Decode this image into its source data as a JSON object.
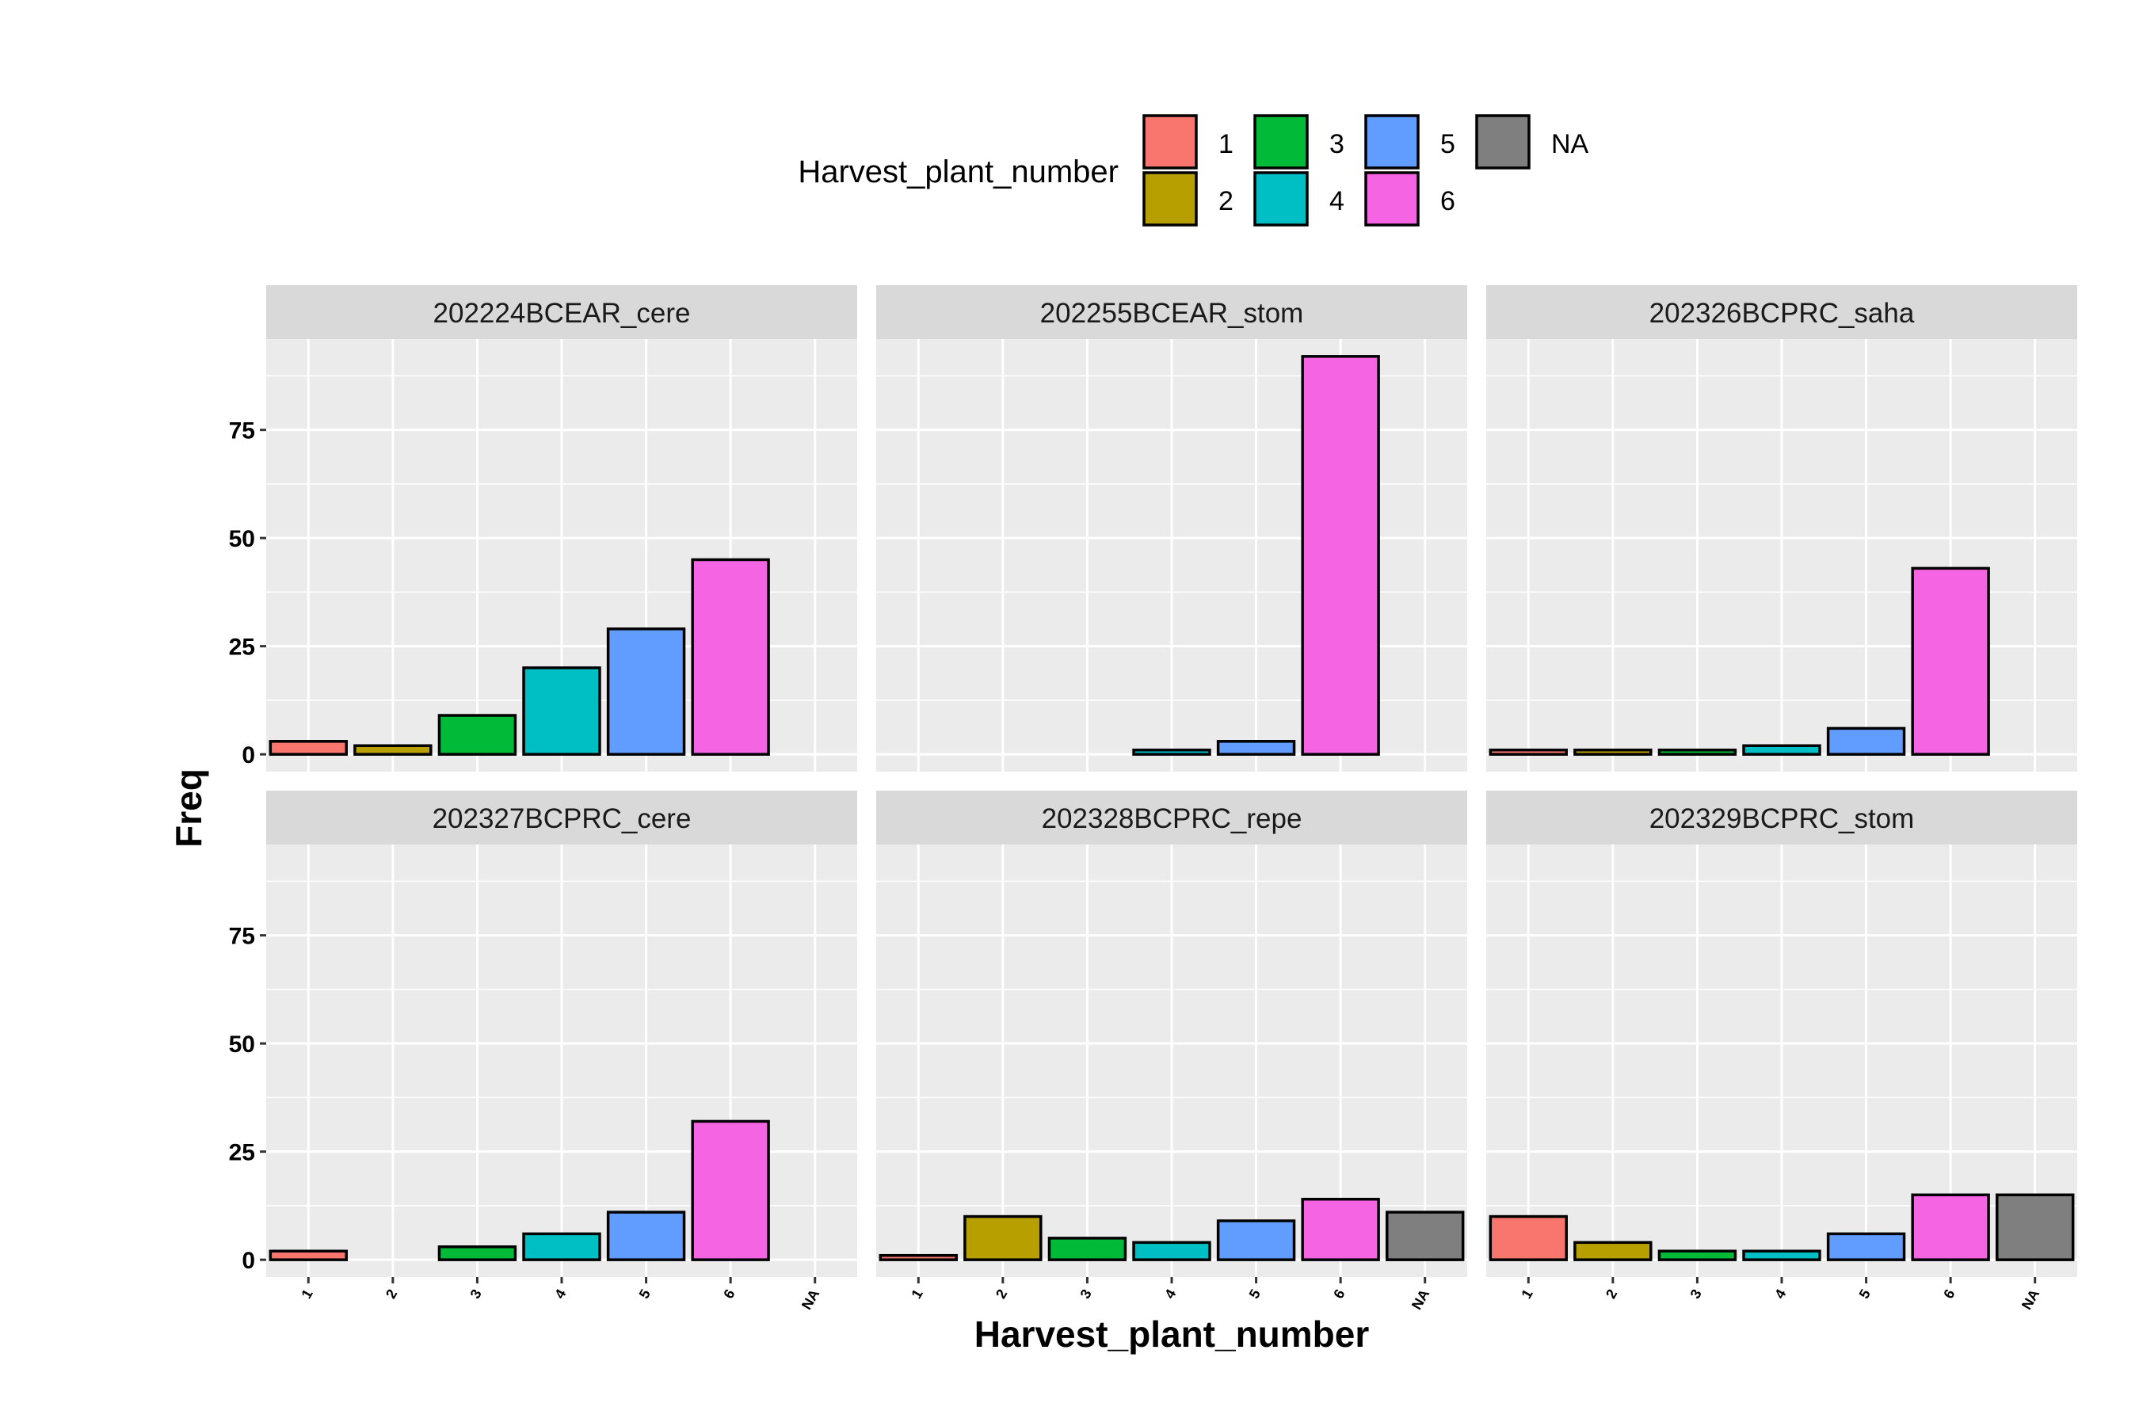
{
  "chart_data": {
    "type": "bar",
    "facet_var_note": "",
    "xlabel": "Harvest_plant_number",
    "ylabel": "Freq",
    "categories": [
      "1",
      "2",
      "3",
      "4",
      "5",
      "6",
      "NA"
    ],
    "yticks": [
      0,
      25,
      50,
      75
    ],
    "ylim": [
      -4,
      96
    ],
    "legend": {
      "title": "Harvest_plant_number",
      "position": "top",
      "entries": [
        {
          "label": "1",
          "color": "#F8766D"
        },
        {
          "label": "2",
          "color": "#B79F00"
        },
        {
          "label": "3",
          "color": "#00BA38"
        },
        {
          "label": "4",
          "color": "#00BFC4"
        },
        {
          "label": "5",
          "color": "#619CFF"
        },
        {
          "label": "6",
          "color": "#F564E3"
        },
        {
          "label": "NA",
          "color": "#7F7F7F"
        }
      ]
    },
    "grid": true,
    "panels": [
      {
        "strip": "202224BCEAR_cere",
        "values": [
          3,
          2,
          9,
          20,
          29,
          45,
          null
        ]
      },
      {
        "strip": "202255BCEAR_stom",
        "values": [
          null,
          null,
          null,
          1,
          3,
          92,
          null
        ]
      },
      {
        "strip": "202326BCPRC_saha",
        "values": [
          1,
          1,
          1,
          2,
          6,
          43,
          null
        ]
      },
      {
        "strip": "202327BCPRC_cere",
        "values": [
          2,
          null,
          3,
          6,
          11,
          32,
          null
        ]
      },
      {
        "strip": "202328BCPRC_repe",
        "values": [
          1,
          10,
          5,
          4,
          9,
          14,
          11
        ]
      },
      {
        "strip": "202329BCPRC_stom",
        "values": [
          10,
          4,
          2,
          2,
          6,
          15,
          15
        ]
      }
    ]
  }
}
